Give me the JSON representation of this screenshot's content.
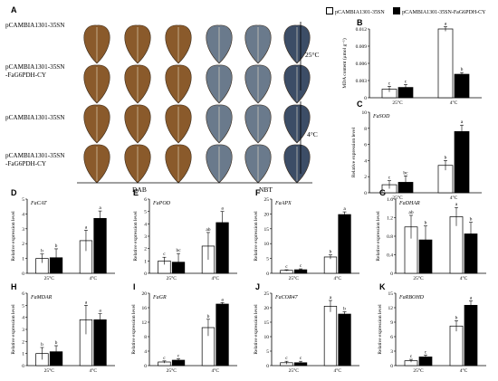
{
  "panels": {
    "A": {
      "letter": "A",
      "rows": [
        "pCAMBIA1301-35SN",
        "pCAMBIA1301-35SN\n-FaG6PDH-CY",
        "pCAMBIA1301-35SN",
        "pCAMBIA1301-35SN\n-FaG6PDH-CY"
      ],
      "stain_dab": "DAB",
      "stain_nbt": "NBT",
      "temp_top": "25°C",
      "temp_bottom": "4°C"
    }
  },
  "legend": {
    "empty_label": "pCAMBIA1301-35SN",
    "filled_label": "pCAMBIA1301-35SN-FaG6PDH-CY"
  },
  "colors": {
    "leaf_dab": "#8a5a2b",
    "leaf_nbt": "#6a7a8c",
    "open_bar": "#ffffff",
    "filled_bar": "#000000"
  },
  "chart_data": [
    {
      "id": "B",
      "type": "bar",
      "title": "",
      "ylabel": "MDA content (μmol g⁻¹)",
      "categories": [
        "25°C",
        "4°C"
      ],
      "ylim": [
        0,
        0.012
      ],
      "yticks": [
        "0",
        "0.003",
        "0.006",
        "0.009",
        "0.012"
      ],
      "series": [
        {
          "values": [
            0.0015,
            0.012
          ],
          "errors": [
            0.0005,
            0.0004
          ],
          "letters": [
            "c",
            "a"
          ]
        },
        {
          "values": [
            0.0018,
            0.0041
          ],
          "errors": [
            0.0005,
            0.0003
          ],
          "letters": [
            "c",
            "b"
          ]
        }
      ]
    },
    {
      "id": "C",
      "type": "bar",
      "title": "FaSOD",
      "ylabel": "Relative expression level",
      "categories": [
        "25°C",
        "4°C"
      ],
      "ylim": [
        0,
        10
      ],
      "yticks": [
        "0",
        "2",
        "4",
        "6",
        "8",
        "10"
      ],
      "series": [
        {
          "values": [
            1.0,
            3.4
          ],
          "errors": [
            0.5,
            0.6
          ],
          "letters": [
            "c",
            "b"
          ]
        },
        {
          "values": [
            1.3,
            7.6
          ],
          "errors": [
            0.8,
            0.8
          ],
          "letters": [
            "bc",
            "a"
          ]
        }
      ]
    },
    {
      "id": "D",
      "type": "bar",
      "title": "FaCAT",
      "ylabel": "Relative expression level",
      "categories": [
        "25°C",
        "4°C"
      ],
      "ylim": [
        0,
        5
      ],
      "yticks": [
        "0",
        "1",
        "2",
        "3",
        "4",
        "5"
      ],
      "series": [
        {
          "values": [
            1.0,
            2.2
          ],
          "errors": [
            0.3,
            0.7
          ],
          "letters": [
            "b",
            "a"
          ]
        },
        {
          "values": [
            1.05,
            3.7
          ],
          "errors": [
            0.6,
            0.5
          ],
          "letters": [
            "b",
            "a"
          ]
        }
      ]
    },
    {
      "id": "E",
      "type": "bar",
      "title": "FaPOD",
      "ylabel": "Relative expression level",
      "categories": [
        "25°C",
        "4°C"
      ],
      "ylim": [
        0,
        6
      ],
      "yticks": [
        "0",
        "1",
        "2",
        "3",
        "4",
        "5",
        "6"
      ],
      "series": [
        {
          "values": [
            1.0,
            2.2
          ],
          "errors": [
            0.3,
            1.1
          ],
          "letters": [
            "c",
            "ab"
          ]
        },
        {
          "values": [
            0.9,
            4.1
          ],
          "errors": [
            0.7,
            0.9
          ],
          "letters": [
            "bc",
            "a"
          ]
        }
      ]
    },
    {
      "id": "F",
      "type": "bar",
      "title": "FaAPX",
      "ylabel": "Relative expression level",
      "categories": [
        "25°C",
        "4°C"
      ],
      "ylim": [
        0,
        25
      ],
      "yticks": [
        "0",
        "5",
        "10",
        "15",
        "20",
        "25"
      ],
      "series": [
        {
          "values": [
            1.0,
            5.5
          ],
          "errors": [
            0.2,
            0.7
          ],
          "letters": [
            "c",
            "b"
          ]
        },
        {
          "values": [
            1.2,
            19.8
          ],
          "errors": [
            0.3,
            0.9
          ],
          "letters": [
            "c",
            "a"
          ]
        }
      ]
    },
    {
      "id": "G",
      "type": "bar",
      "title": "FaDHAR",
      "ylabel": "Relative expression level",
      "categories": [
        "25°C",
        "4°C"
      ],
      "ylim": [
        0,
        1.6
      ],
      "yticks": [
        "0",
        "0.4",
        "0.8",
        "1.2",
        "1.6"
      ],
      "series": [
        {
          "values": [
            1.0,
            1.22
          ],
          "errors": [
            0.25,
            0.2
          ],
          "letters": [
            "ab",
            "a"
          ]
        },
        {
          "values": [
            0.72,
            0.85
          ],
          "errors": [
            0.3,
            0.25
          ],
          "letters": [
            "b",
            "b"
          ]
        }
      ]
    },
    {
      "id": "H",
      "type": "bar",
      "title": "FaMDAR",
      "ylabel": "Relative expression level",
      "categories": [
        "25°C",
        "4°C"
      ],
      "ylim": [
        0,
        6
      ],
      "yticks": [
        "0",
        "1",
        "2",
        "3",
        "4",
        "5",
        "6"
      ],
      "series": [
        {
          "values": [
            1.0,
            3.8
          ],
          "errors": [
            0.5,
            1.2
          ],
          "letters": [
            "b",
            "a"
          ]
        },
        {
          "values": [
            1.15,
            3.8
          ],
          "errors": [
            0.5,
            0.5
          ],
          "letters": [
            "b",
            "a"
          ]
        }
      ]
    },
    {
      "id": "I",
      "type": "bar",
      "title": "FaGR",
      "ylabel": "Relative expression level",
      "categories": [
        "25°C",
        "4°C"
      ],
      "ylim": [
        0,
        20
      ],
      "yticks": [
        "0",
        "4",
        "8",
        "12",
        "16",
        "20"
      ],
      "series": [
        {
          "values": [
            1.0,
            10.5
          ],
          "errors": [
            0.3,
            2.3
          ],
          "letters": [
            "c",
            "b"
          ]
        },
        {
          "values": [
            1.5,
            17.0
          ],
          "errors": [
            0.4,
            0.4
          ],
          "letters": [
            "c",
            "a"
          ]
        }
      ]
    },
    {
      "id": "J",
      "type": "bar",
      "title": "FaCOR47",
      "ylabel": "Relative expression level",
      "categories": [
        "25°C",
        "4°C"
      ],
      "ylim": [
        0,
        25
      ],
      "yticks": [
        "0",
        "5",
        "10",
        "15",
        "20",
        "25"
      ],
      "series": [
        {
          "values": [
            1.0,
            20.5
          ],
          "errors": [
            0.5,
            2.0
          ],
          "letters": [
            "c",
            "a"
          ]
        },
        {
          "values": [
            1.0,
            17.8
          ],
          "errors": [
            0.5,
            0.8
          ],
          "letters": [
            "c",
            "b"
          ]
        }
      ]
    },
    {
      "id": "K",
      "type": "bar",
      "title": "FaRBOHD",
      "ylabel": "Relative expression level",
      "categories": [
        "25°C",
        "4°C"
      ],
      "ylim": [
        0,
        15
      ],
      "yticks": [
        "0",
        "3",
        "6",
        "9",
        "12",
        "15"
      ],
      "series": [
        {
          "values": [
            1.0,
            8.2
          ],
          "errors": [
            0.3,
            1.1
          ],
          "letters": [
            "c",
            "b"
          ]
        },
        {
          "values": [
            1.8,
            12.5
          ],
          "errors": [
            0.4,
            0.9
          ],
          "letters": [
            "c",
            "a"
          ]
        }
      ]
    }
  ]
}
